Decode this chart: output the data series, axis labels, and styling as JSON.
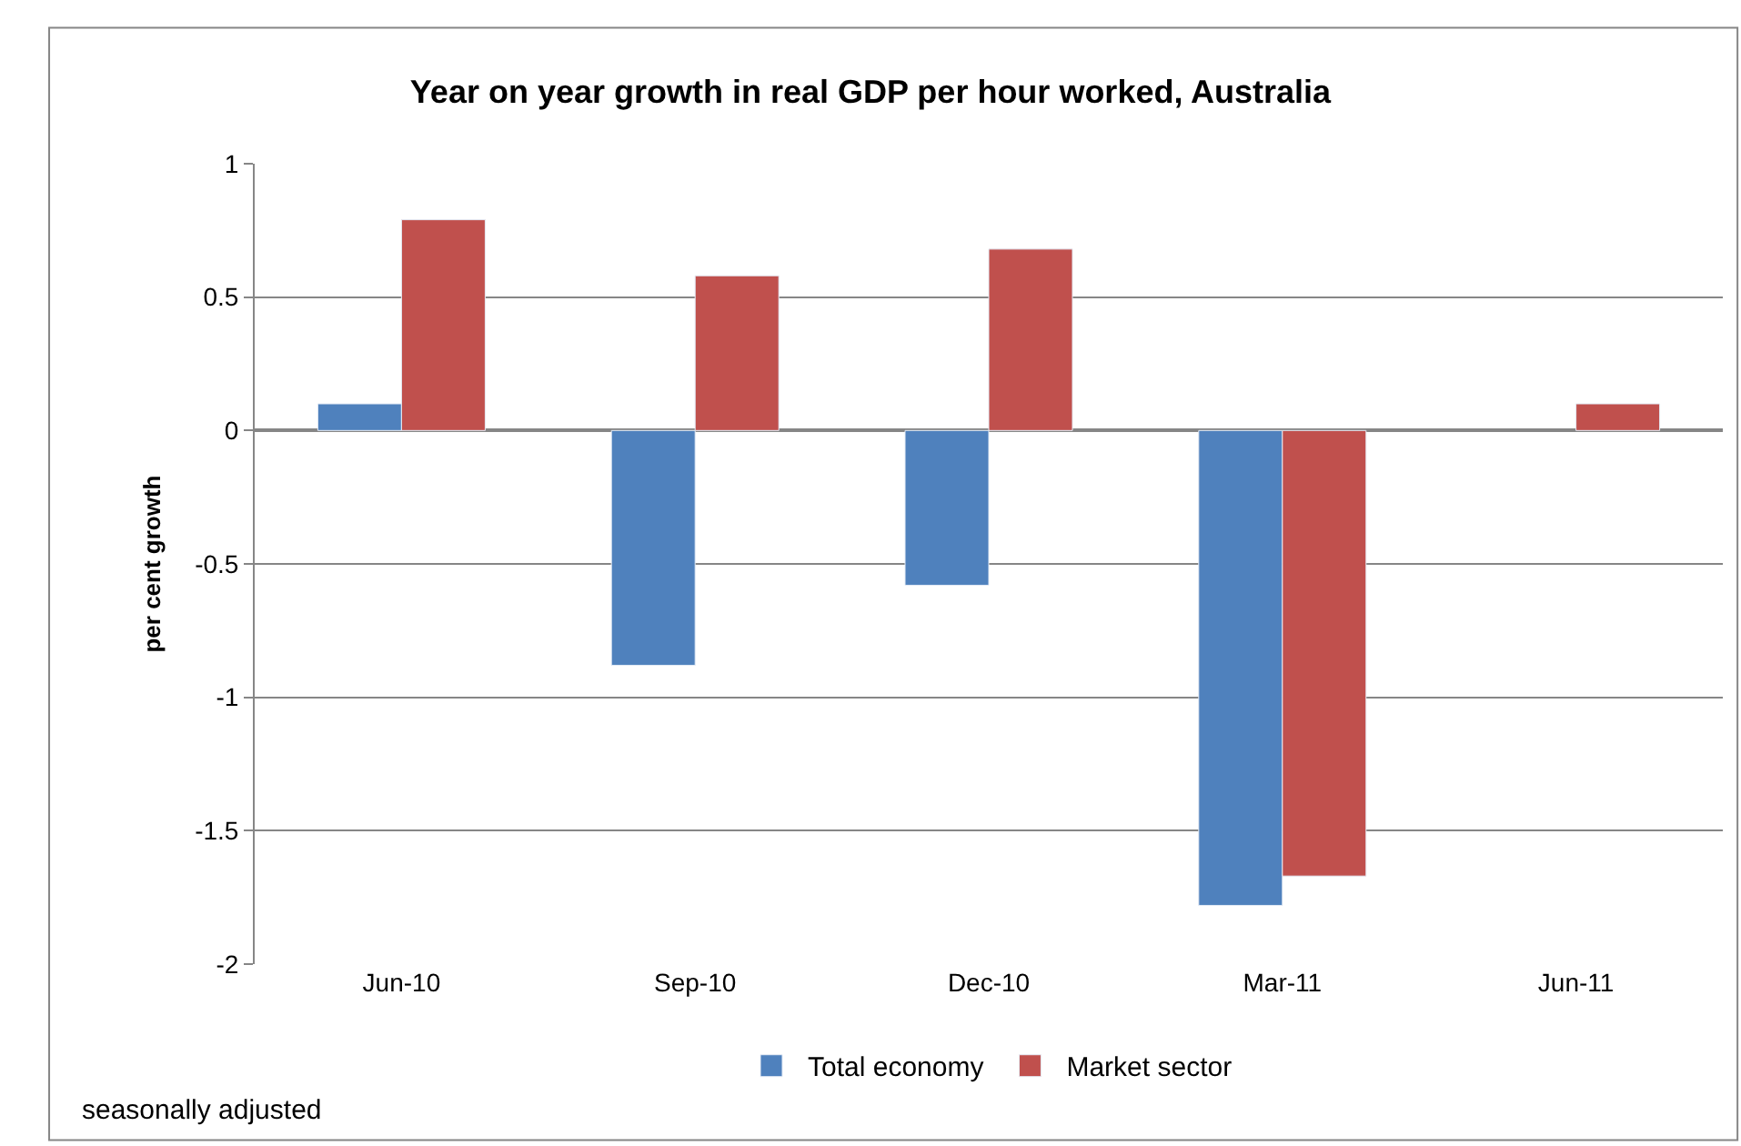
{
  "chart_data": {
    "type": "bar",
    "title": "Year on year growth in real GDP per hour worked, Australia",
    "ylabel": "per cent growth",
    "categories": [
      "Jun-10",
      "Sep-10",
      "Dec-10",
      "Mar-11",
      "Jun-11"
    ],
    "series": [
      {
        "name": "Total economy",
        "color": "#4f81bd",
        "values": [
          0.1,
          -0.88,
          -0.58,
          -1.78,
          null
        ]
      },
      {
        "name": "Market sector",
        "color": "#c0504d",
        "values": [
          0.79,
          0.58,
          0.68,
          -1.67,
          0.1
        ]
      }
    ],
    "ylim": [
      -2,
      1
    ],
    "yticks": [
      -2,
      -1.5,
      -1,
      -0.5,
      0,
      0.5,
      1
    ],
    "grid": "y",
    "legend": "bottom",
    "annotations": [
      "seasonally adjusted"
    ]
  }
}
